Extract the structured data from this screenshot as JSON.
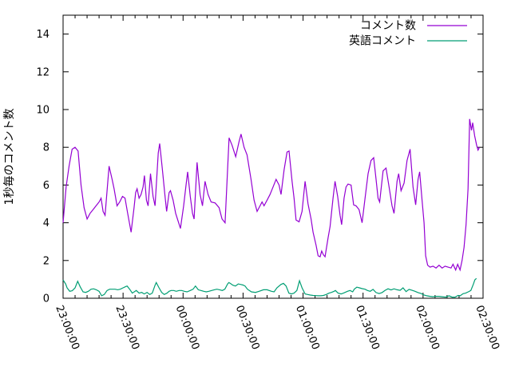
{
  "chart_data": {
    "type": "line",
    "title": "",
    "xlabel": "",
    "ylabel": "1秒毎のコメント数",
    "x_domain_minutes": [
      0,
      210
    ],
    "x_tick_interval_minutes": 30,
    "x_minor_tick_interval_minutes": 6,
    "x_ticklabels": [
      "23:00:00",
      "23:30:00",
      "00:00:00",
      "00:30:00",
      "01:00:00",
      "01:30:00",
      "02:00:00",
      "02:30:00"
    ],
    "ylim": [
      0,
      15
    ],
    "y_ticks": [
      0,
      2,
      4,
      6,
      8,
      10,
      12,
      14
    ],
    "y_ticklabels": [
      "0",
      "2",
      "4",
      "6",
      "8",
      "10",
      "12",
      "14"
    ],
    "grid": false,
    "legend_position": "top-right-inside",
    "background_color": "#ffffff",
    "axis_color": "#000000",
    "series": [
      {
        "id": "comment-count",
        "name": "コメント数",
        "color": "#9400d3",
        "points": [
          [
            0,
            4
          ],
          [
            1.5,
            5.9
          ],
          [
            3,
            7
          ],
          [
            4.5,
            7.9
          ],
          [
            6,
            8
          ],
          [
            7.5,
            7.8
          ],
          [
            9,
            6
          ],
          [
            10.5,
            4.8
          ],
          [
            12,
            4.2
          ],
          [
            13.5,
            4.5
          ],
          [
            15,
            4.7
          ],
          [
            16.5,
            4.9
          ],
          [
            18,
            5.1
          ],
          [
            19,
            5.3
          ],
          [
            20,
            4.6
          ],
          [
            21,
            4.4
          ],
          [
            23,
            7
          ],
          [
            24.5,
            6.3
          ],
          [
            25.5,
            5.8
          ],
          [
            27,
            4.9
          ],
          [
            28.3,
            5.1
          ],
          [
            29.7,
            5.4
          ],
          [
            31,
            5.3
          ],
          [
            32.3,
            4.5
          ],
          [
            34,
            3.5
          ],
          [
            35.5,
            4.8
          ],
          [
            36.3,
            5.6
          ],
          [
            37,
            5.8
          ],
          [
            38,
            5.3
          ],
          [
            39,
            5.5
          ],
          [
            40,
            5.9
          ],
          [
            40.7,
            6.5
          ],
          [
            41.7,
            5.2
          ],
          [
            42.5,
            4.9
          ],
          [
            43.7,
            6.6
          ],
          [
            45,
            5.4
          ],
          [
            46,
            4.9
          ],
          [
            47.6,
            7.7
          ],
          [
            48.3,
            8.2
          ],
          [
            49.6,
            6.9
          ],
          [
            51,
            5.4
          ],
          [
            51.8,
            4.6
          ],
          [
            53,
            5.6
          ],
          [
            53.7,
            5.7
          ],
          [
            55,
            5.2
          ],
          [
            56.3,
            4.5
          ],
          [
            58.7,
            3.7
          ],
          [
            60.3,
            4.9
          ],
          [
            61.6,
            6.1
          ],
          [
            62.3,
            6.7
          ],
          [
            63.6,
            5.4
          ],
          [
            64.7,
            4.5
          ],
          [
            65.5,
            4.2
          ],
          [
            67,
            7.2
          ],
          [
            68.5,
            5.5
          ],
          [
            69.7,
            4.9
          ],
          [
            71,
            6.2
          ],
          [
            72.5,
            5.5
          ],
          [
            74,
            5.1
          ],
          [
            76,
            5.05
          ],
          [
            78,
            4.8
          ],
          [
            79.5,
            4.2
          ],
          [
            81,
            4
          ],
          [
            83,
            8.5
          ],
          [
            84.5,
            8.1
          ],
          [
            86.3,
            7.5
          ],
          [
            88,
            8.3
          ],
          [
            89,
            8.7
          ],
          [
            90.5,
            8
          ],
          [
            92,
            7.6
          ],
          [
            94,
            6.3
          ],
          [
            95.5,
            5.2
          ],
          [
            97,
            4.6
          ],
          [
            98.5,
            4.9
          ],
          [
            99.5,
            5.1
          ],
          [
            100.5,
            4.9
          ],
          [
            102,
            5.2
          ],
          [
            103.5,
            5.5
          ],
          [
            105,
            5.9
          ],
          [
            106.5,
            6.3
          ],
          [
            108,
            6
          ],
          [
            109,
            5.5
          ],
          [
            110.5,
            6.8
          ],
          [
            112,
            7.75
          ],
          [
            113,
            7.8
          ],
          [
            114.5,
            6.2
          ],
          [
            115.5,
            5.3
          ],
          [
            116.5,
            4.15
          ],
          [
            118,
            4.05
          ],
          [
            119.5,
            4.6
          ],
          [
            121,
            6.2
          ],
          [
            122.5,
            5
          ],
          [
            124,
            4.2
          ],
          [
            125,
            3.5
          ],
          [
            126.5,
            2.8
          ],
          [
            127.5,
            2.25
          ],
          [
            128.5,
            2.2
          ],
          [
            129.3,
            2.5
          ],
          [
            130.2,
            2.3
          ],
          [
            131,
            2.2
          ],
          [
            132.5,
            3.2
          ],
          [
            133.5,
            3.8
          ],
          [
            135,
            5.3
          ],
          [
            136,
            6.2
          ],
          [
            137.3,
            5.4
          ],
          [
            138.5,
            4.4
          ],
          [
            139.3,
            3.9
          ],
          [
            140.5,
            5.3
          ],
          [
            141.5,
            5.9
          ],
          [
            142.5,
            6.05
          ],
          [
            144,
            6
          ],
          [
            145.3,
            4.95
          ],
          [
            146.5,
            4.9
          ],
          [
            148,
            4.7
          ],
          [
            149.5,
            4
          ],
          [
            151,
            5.3
          ],
          [
            152.5,
            6.6
          ],
          [
            154,
            7.3
          ],
          [
            155.3,
            7.45
          ],
          [
            156.5,
            6.3
          ],
          [
            157.5,
            5.3
          ],
          [
            158.3,
            5.1
          ],
          [
            160,
            6.75
          ],
          [
            161.5,
            6.9
          ],
          [
            163,
            5.9
          ],
          [
            164.5,
            4.9
          ],
          [
            165.5,
            4.5
          ],
          [
            167,
            6.2
          ],
          [
            167.8,
            6.6
          ],
          [
            169,
            5.7
          ],
          [
            170.5,
            6.1
          ],
          [
            172,
            7.3
          ],
          [
            173.5,
            7.9
          ],
          [
            175,
            5.9
          ],
          [
            176.3,
            4.95
          ],
          [
            177.5,
            6.3
          ],
          [
            178.3,
            6.7
          ],
          [
            179.5,
            5.2
          ],
          [
            180.5,
            4
          ],
          [
            181.3,
            2.25
          ],
          [
            182.3,
            1.75
          ],
          [
            183.5,
            1.65
          ],
          [
            185,
            1.7
          ],
          [
            186.5,
            1.6
          ],
          [
            188,
            1.75
          ],
          [
            189.5,
            1.6
          ],
          [
            191,
            1.7
          ],
          [
            192.5,
            1.65
          ],
          [
            194,
            1.6
          ],
          [
            195,
            1.8
          ],
          [
            196.3,
            1.5
          ],
          [
            197.3,
            1.8
          ],
          [
            198.5,
            1.5
          ],
          [
            199.5,
            2
          ],
          [
            200.5,
            2.7
          ],
          [
            201.5,
            3.9
          ],
          [
            202.5,
            5.8
          ],
          [
            203.3,
            9.5
          ],
          [
            204.2,
            8.9
          ],
          [
            204.8,
            9.3
          ],
          [
            205.8,
            8.6
          ],
          [
            206.8,
            8.1
          ],
          [
            207.5,
            7.85
          ],
          [
            208.2,
            8
          ]
        ]
      },
      {
        "id": "english-comment",
        "name": "英語コメント",
        "color": "#009e73",
        "points": [
          [
            0,
            0.97
          ],
          [
            1.3,
            0.75
          ],
          [
            2,
            0.55
          ],
          [
            3.3,
            0.37
          ],
          [
            4.6,
            0.4
          ],
          [
            6,
            0.55
          ],
          [
            7.3,
            0.9
          ],
          [
            8.6,
            0.6
          ],
          [
            10,
            0.34
          ],
          [
            11.3,
            0.31
          ],
          [
            12.6,
            0.37
          ],
          [
            14,
            0.48
          ],
          [
            15.3,
            0.5
          ],
          [
            16.6,
            0.45
          ],
          [
            18,
            0.37
          ],
          [
            19.3,
            0.13
          ],
          [
            20.6,
            0.2
          ],
          [
            22,
            0.41
          ],
          [
            23.3,
            0.48
          ],
          [
            24.6,
            0.48
          ],
          [
            26,
            0.48
          ],
          [
            27.3,
            0.45
          ],
          [
            28.6,
            0.48
          ],
          [
            30,
            0.55
          ],
          [
            31.3,
            0.62
          ],
          [
            32,
            0.65
          ],
          [
            33.3,
            0.48
          ],
          [
            34.6,
            0.27
          ],
          [
            36,
            0.37
          ],
          [
            36.6,
            0.41
          ],
          [
            38,
            0.27
          ],
          [
            39.3,
            0.31
          ],
          [
            40.6,
            0.23
          ],
          [
            42,
            0.31
          ],
          [
            43.3,
            0.2
          ],
          [
            44.6,
            0.27
          ],
          [
            46,
            0.69
          ],
          [
            46.6,
            0.83
          ],
          [
            48,
            0.55
          ],
          [
            49.3,
            0.31
          ],
          [
            50.6,
            0.2
          ],
          [
            52,
            0.27
          ],
          [
            53,
            0.37
          ],
          [
            54,
            0.41
          ],
          [
            55.3,
            0.41
          ],
          [
            56.6,
            0.37
          ],
          [
            58,
            0.41
          ],
          [
            59.3,
            0.41
          ],
          [
            60.6,
            0.37
          ],
          [
            62,
            0.34
          ],
          [
            63.6,
            0.41
          ],
          [
            65,
            0.48
          ],
          [
            66.2,
            0.65
          ],
          [
            67.6,
            0.45
          ],
          [
            68.9,
            0.41
          ],
          [
            70.3,
            0.37
          ],
          [
            71.6,
            0.34
          ],
          [
            72.9,
            0.37
          ],
          [
            74.3,
            0.41
          ],
          [
            75.6,
            0.45
          ],
          [
            76.9,
            0.48
          ],
          [
            78.3,
            0.45
          ],
          [
            79.6,
            0.41
          ],
          [
            80.9,
            0.48
          ],
          [
            82.3,
            0.76
          ],
          [
            82.9,
            0.83
          ],
          [
            83.6,
            0.79
          ],
          [
            84.9,
            0.69
          ],
          [
            86.2,
            0.65
          ],
          [
            87.6,
            0.76
          ],
          [
            88.9,
            0.73
          ],
          [
            90,
            0.7
          ],
          [
            91,
            0.65
          ],
          [
            92.2,
            0.48
          ],
          [
            94.2,
            0.34
          ],
          [
            96.2,
            0.31
          ],
          [
            98,
            0.37
          ],
          [
            100.2,
            0.45
          ],
          [
            102,
            0.45
          ],
          [
            104.2,
            0.37
          ],
          [
            105.5,
            0.34
          ],
          [
            106.9,
            0.55
          ],
          [
            108.9,
            0.73
          ],
          [
            110.2,
            0.79
          ],
          [
            111.5,
            0.65
          ],
          [
            112.9,
            0.27
          ],
          [
            114.2,
            0.23
          ],
          [
            115.5,
            0.27
          ],
          [
            116.9,
            0.41
          ],
          [
            118.2,
            0.93
          ],
          [
            119.5,
            0.55
          ],
          [
            121,
            0.23
          ],
          [
            122.3,
            0.2
          ],
          [
            123.6,
            0.17
          ],
          [
            125,
            0.15
          ],
          [
            126.2,
            0.14
          ],
          [
            127.5,
            0.13
          ],
          [
            128.9,
            0.13
          ],
          [
            130.2,
            0.15
          ],
          [
            131.6,
            0.2
          ],
          [
            133,
            0.27
          ],
          [
            134.2,
            0.31
          ],
          [
            135.5,
            0.37
          ],
          [
            136.2,
            0.41
          ],
          [
            137.5,
            0.27
          ],
          [
            139,
            0.23
          ],
          [
            140.2,
            0.27
          ],
          [
            142.2,
            0.37
          ],
          [
            143.5,
            0.41
          ],
          [
            144.8,
            0.34
          ],
          [
            145.6,
            0.48
          ],
          [
            146.9,
            0.59
          ],
          [
            148.2,
            0.55
          ],
          [
            149.6,
            0.51
          ],
          [
            151,
            0.48
          ],
          [
            152.2,
            0.41
          ],
          [
            153.6,
            0.37
          ],
          [
            155,
            0.47
          ],
          [
            156.5,
            0.3
          ],
          [
            158,
            0.25
          ],
          [
            159.5,
            0.3
          ],
          [
            161,
            0.42
          ],
          [
            162.5,
            0.5
          ],
          [
            164,
            0.44
          ],
          [
            165.5,
            0.5
          ],
          [
            167,
            0.45
          ],
          [
            168.5,
            0.42
          ],
          [
            170,
            0.55
          ],
          [
            171.5,
            0.35
          ],
          [
            173,
            0.47
          ],
          [
            174.5,
            0.42
          ],
          [
            176,
            0.37
          ],
          [
            177.5,
            0.3
          ],
          [
            179,
            0.25
          ],
          [
            180.5,
            0.17
          ],
          [
            181.8,
            0.13
          ],
          [
            183.5,
            0.1
          ],
          [
            185,
            0.08
          ],
          [
            186.5,
            0.1
          ],
          [
            188,
            0.1
          ],
          [
            189.5,
            0.08
          ],
          [
            191.3,
            0.06
          ],
          [
            193,
            0.13
          ],
          [
            194.5,
            0.06
          ],
          [
            196,
            0.06
          ],
          [
            197.5,
            0.15
          ],
          [
            198.6,
            0.13
          ],
          [
            200,
            0.24
          ],
          [
            201.3,
            0.27
          ],
          [
            202.6,
            0.34
          ],
          [
            203.9,
            0.41
          ],
          [
            205.2,
            0.76
          ],
          [
            205.9,
            0.97
          ],
          [
            206.7,
            1.05
          ]
        ]
      }
    ]
  }
}
